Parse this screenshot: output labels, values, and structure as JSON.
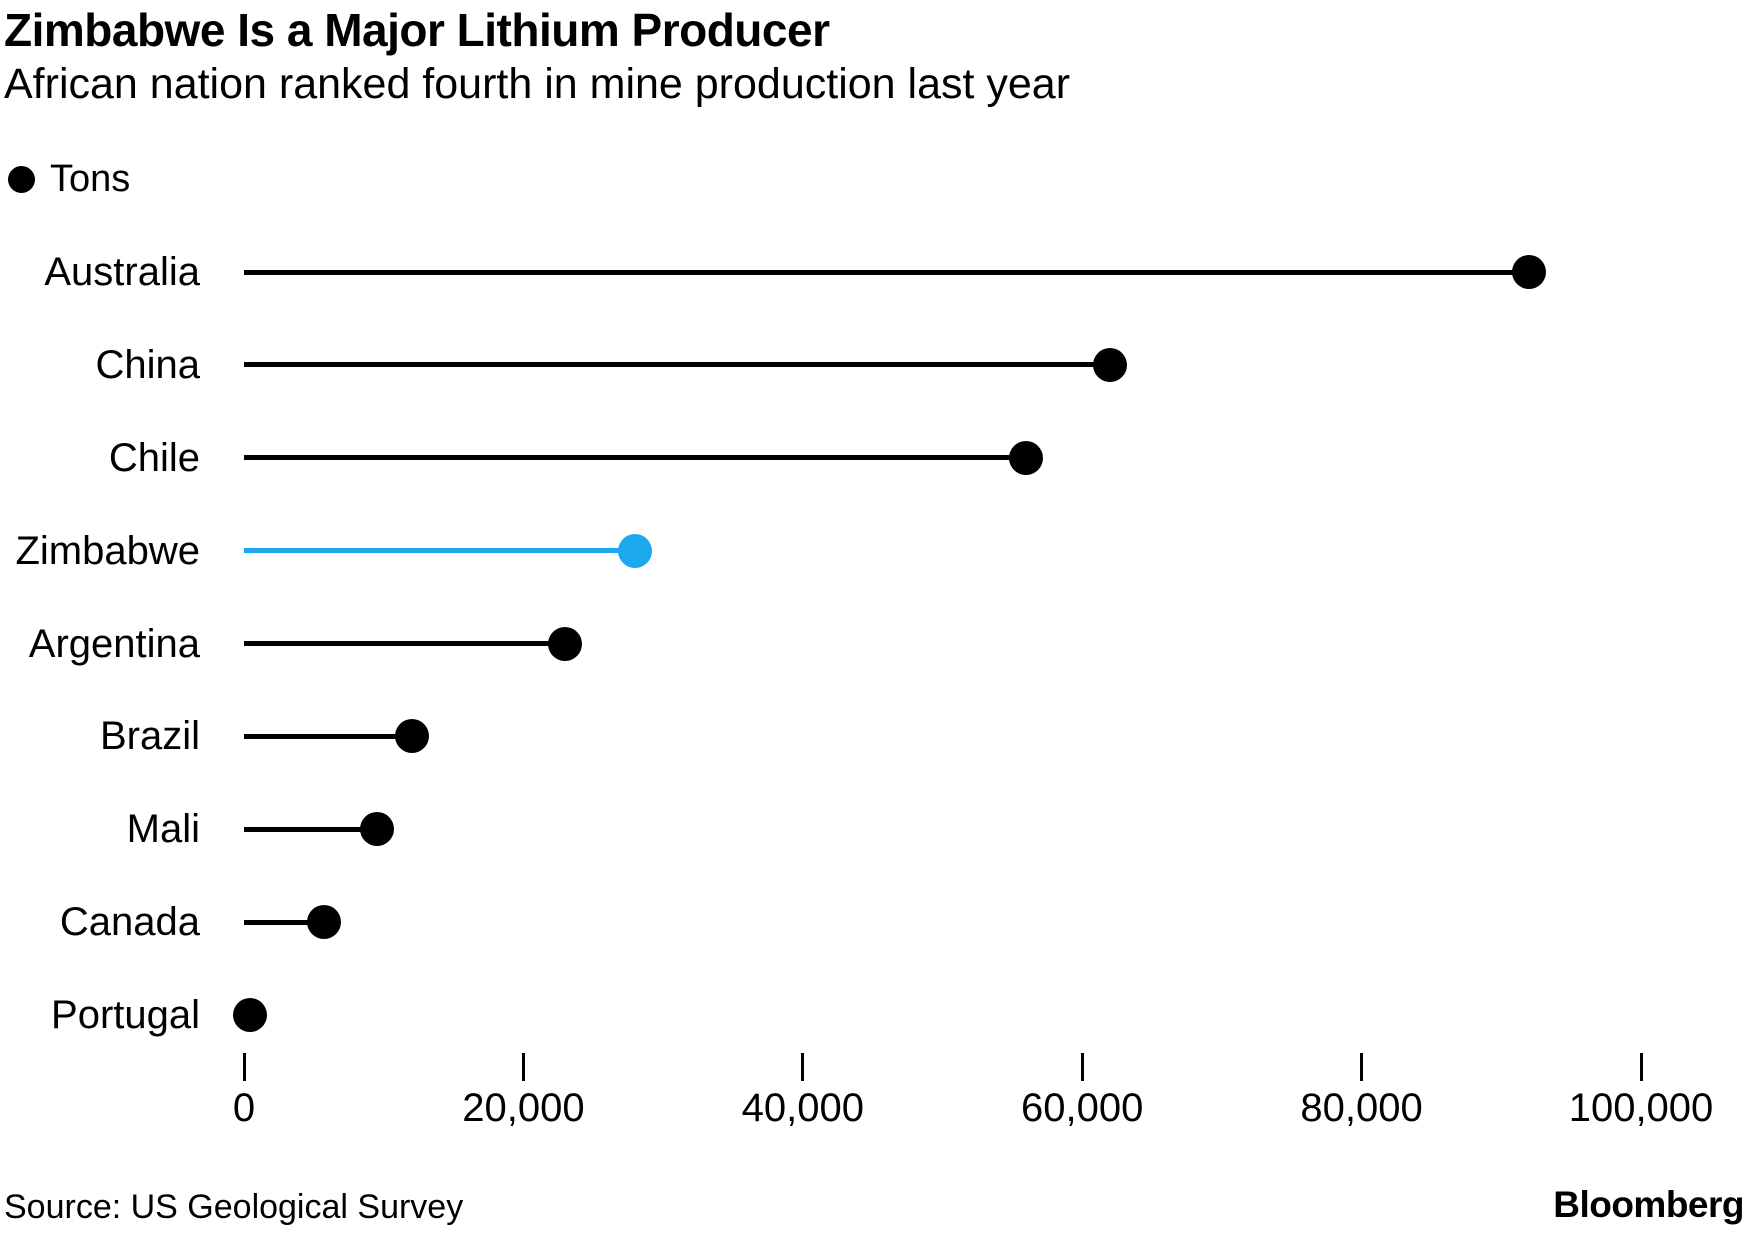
{
  "header": {
    "title": "Zimbabwe Is a Major Lithium Producer",
    "subtitle": "African nation ranked fourth in mine production last year"
  },
  "legend": {
    "label": "Tons"
  },
  "footer": {
    "source": "Source: US Geological Survey",
    "brand": "Bloomberg"
  },
  "colors": {
    "bar": "#000000",
    "highlight": "#1BA8EC",
    "text": "#000000",
    "background": "#ffffff"
  },
  "chart_data": {
    "type": "bar",
    "style": "lollipop",
    "orientation": "horizontal",
    "title": "Zimbabwe Is a Major Lithium Producer",
    "subtitle": "African nation ranked fourth in mine production last year",
    "series_name": "Tons",
    "categories": [
      "Australia",
      "China",
      "Chile",
      "Zimbabwe",
      "Argentina",
      "Brazil",
      "Mali",
      "Canada",
      "Portugal"
    ],
    "values": [
      92000,
      62000,
      56000,
      28000,
      23000,
      12000,
      9500,
      5700,
      400
    ],
    "highlight_category": "Zimbabwe",
    "xlabel": "",
    "ylabel": "",
    "xlim": [
      0,
      105000
    ],
    "x_ticks": [
      0,
      20000,
      40000,
      60000,
      80000,
      100000
    ],
    "x_tick_labels": [
      "0",
      "20,000",
      "40,000",
      "60,000",
      "80,000",
      "100,000"
    ],
    "grid": false,
    "legend_position": "top-left"
  }
}
